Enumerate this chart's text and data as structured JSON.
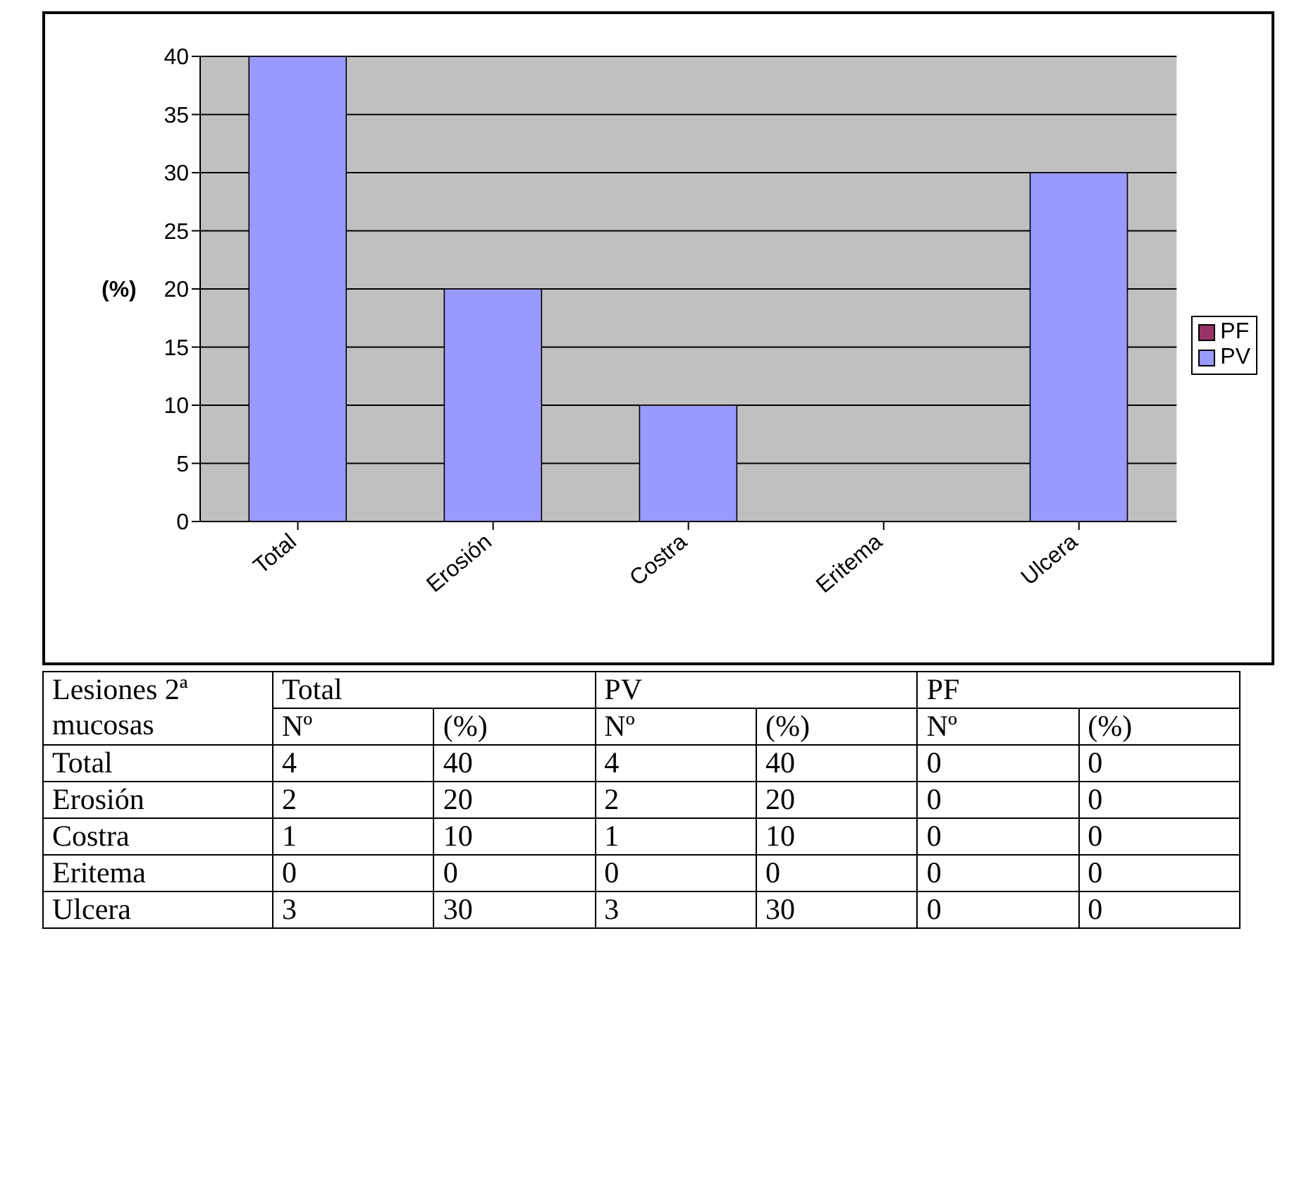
{
  "chart_data": [
    {
      "type": "bar",
      "categories": [
        "Total",
        "Erosión",
        "Costra",
        "Eritema",
        "Ulcera"
      ],
      "stacked": true,
      "ylabel": "(%)",
      "ylim": [
        0,
        40
      ],
      "yticks": [
        0,
        5,
        10,
        15,
        20,
        25,
        30,
        35,
        40
      ],
      "grid": "y",
      "legend": "right",
      "series": [
        {
          "name": "PV",
          "color": "#9999ff",
          "values": [
            40,
            20,
            10,
            0,
            30
          ]
        },
        {
          "name": "PF",
          "color": "#993366",
          "values": [
            0,
            0,
            0,
            0,
            0
          ]
        }
      ]
    },
    {
      "type": "other",
      "title": "Lesiones 2ª mucosas",
      "data_labels": true,
      "categories": [
        "Total",
        "Erosión",
        "Costra",
        "Eritema",
        "Ulcera"
      ],
      "annotations": [
        "Nº",
        "(%)"
      ],
      "series": [
        {
          "name": "Total",
          "values": [
            4,
            2,
            1,
            0,
            3
          ]
        },
        {
          "values": [
            40,
            20,
            10,
            0,
            30
          ]
        },
        {
          "name": "PV",
          "values": [
            4,
            2,
            1,
            0,
            3
          ]
        },
        {
          "values": [
            40,
            20,
            10,
            0,
            30
          ]
        },
        {
          "name": "PF",
          "values": [
            0,
            0,
            0,
            0,
            0
          ]
        },
        {
          "values": [
            0,
            0,
            0,
            0,
            0
          ]
        }
      ]
    }
  ]
}
